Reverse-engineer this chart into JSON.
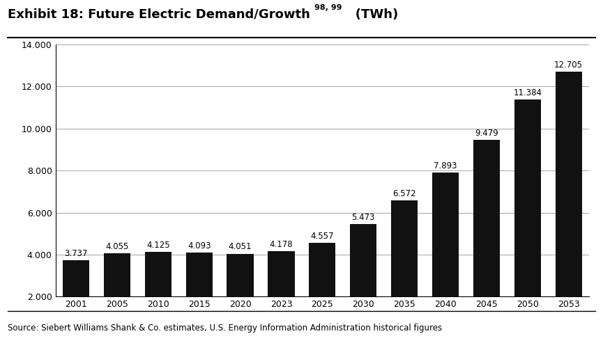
{
  "title_main": "Exhibit 18: Future Electric Demand/Growth ",
  "title_superscript": "98, 99",
  "title_suffix": "   (TWh)",
  "source_text": "Source: Siebert Williams Shank & Co. estimates, U.S. Energy Information Administration historical figures",
  "categories": [
    "2001",
    "2005",
    "2010",
    "2015",
    "2020",
    "2023",
    "2025",
    "2030",
    "2035",
    "2040",
    "2045",
    "2050",
    "2053"
  ],
  "values": [
    3.737,
    4.055,
    4.125,
    4.093,
    4.051,
    4.178,
    4.557,
    5.473,
    6.572,
    7.893,
    9.479,
    11.384,
    12.705
  ],
  "bar_color": "#111111",
  "background_color": "#ffffff",
  "ylim": [
    2.0,
    14.0
  ],
  "yticks": [
    2.0,
    4.0,
    6.0,
    8.0,
    10.0,
    12.0,
    14.0
  ],
  "ytick_labels": [
    "2.000",
    "4.000",
    "6.000",
    "8.000",
    "10.000",
    "12.000",
    "14.000"
  ],
  "title_fontsize": 13,
  "sup_fontsize": 8,
  "axis_fontsize": 9,
  "label_fontsize": 8.5,
  "source_fontsize": 8.5
}
